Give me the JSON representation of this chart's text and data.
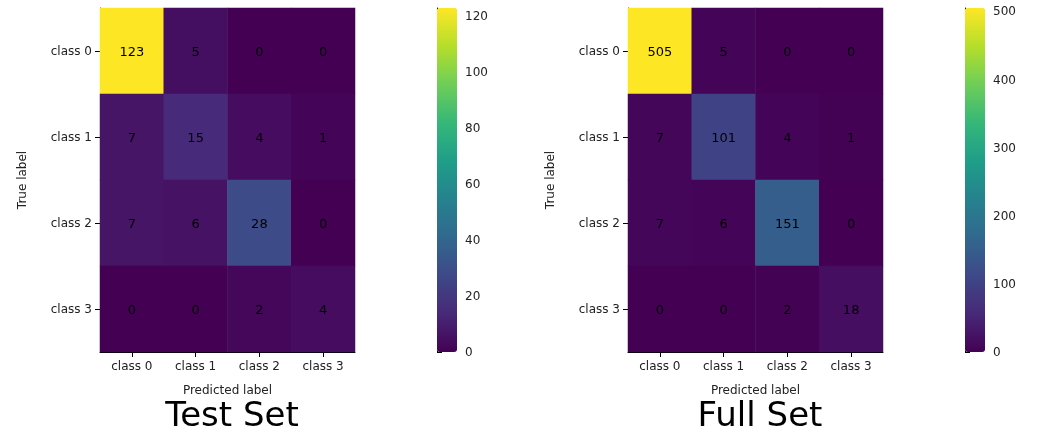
{
  "chart_data": [
    {
      "type": "heatmap",
      "title": "Test Set",
      "xlabel": "Predicted label",
      "ylabel": "True label",
      "categories": [
        "class 0",
        "class 1",
        "class 2",
        "class 3"
      ],
      "y_categories": [
        "class 0",
        "class 1",
        "class 2",
        "class 3"
      ],
      "cells": [
        [
          123,
          5,
          0,
          0
        ],
        [
          7,
          15,
          4,
          1
        ],
        [
          7,
          6,
          28,
          0
        ],
        [
          0,
          0,
          2,
          4
        ]
      ],
      "clim": [
        0,
        123
      ],
      "cticks": [
        0,
        20,
        40,
        60,
        80,
        100,
        120
      ],
      "data_labels": true
    },
    {
      "type": "heatmap",
      "title": "Full Set",
      "xlabel": "Predicted label",
      "ylabel": "True label",
      "categories": [
        "class 0",
        "class 1",
        "class 2",
        "class 3"
      ],
      "y_categories": [
        "class 0",
        "class 1",
        "class 2",
        "class 3"
      ],
      "cells": [
        [
          505,
          5,
          0,
          0
        ],
        [
          7,
          101,
          4,
          1
        ],
        [
          7,
          6,
          151,
          0
        ],
        [
          0,
          0,
          2,
          18
        ]
      ],
      "clim": [
        0,
        505
      ],
      "cticks": [
        0,
        100,
        200,
        300,
        400,
        500
      ],
      "data_labels": true
    }
  ]
}
